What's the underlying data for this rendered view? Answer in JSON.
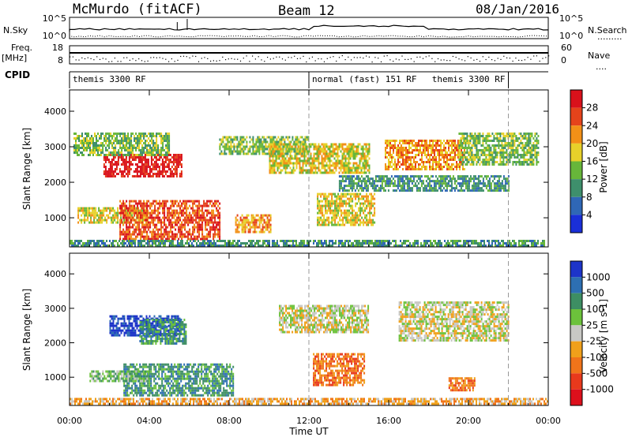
{
  "header": {
    "station": "McMurdo (fitACF)",
    "beam": "Beam 12",
    "date": "08/Jan/2016"
  },
  "summary_panels": {
    "nsky_label": "N.Sky",
    "nsky_ticks": [
      "10^5",
      "10^0"
    ],
    "nsearch_label": "N.Search",
    "nsearch_ticks": [
      "10^5",
      "10^0"
    ],
    "freq_label": "Freq.",
    "freq_unit": "[MHz]",
    "freq_ticks": [
      "18",
      "8"
    ],
    "nave_label": "Nave",
    "nave_ticks": [
      "60",
      "0"
    ],
    "cpid_label": "CPID",
    "cpid_segments": [
      {
        "label": "themis 3300 RF",
        "start_h": 0,
        "end_h": 12
      },
      {
        "label": "normal (fast) 151 RF",
        "start_h": 12,
        "end_h": 22
      },
      {
        "label": "themis 3300 RF",
        "start_h": 22,
        "end_h": 24
      }
    ]
  },
  "x_axis": {
    "label": "Time UT",
    "ticks": [
      "00:00",
      "04:00",
      "08:00",
      "12:00",
      "16:00",
      "20:00",
      "00:00"
    ]
  },
  "chart_data": [
    {
      "type": "heatmap",
      "name": "power",
      "ylabel": "Slant Range [km]",
      "x_range_hours": [
        0,
        24
      ],
      "ylim": [
        180,
        4600
      ],
      "y_ticks": [
        1000,
        2000,
        3000,
        4000
      ],
      "colorbar": {
        "label": "Power [dB]",
        "ticks": [
          "4",
          "8",
          "12",
          "16",
          "20",
          "24",
          "28"
        ],
        "colors": [
          "#1a2fd8",
          "#2f67b6",
          "#3e8f6c",
          "#67b63a",
          "#e7d12a",
          "#f29017",
          "#e5431b",
          "#d9111b"
        ]
      },
      "regions": [
        {
          "t0": 0.4,
          "t1": 3.9,
          "r0": 900,
          "r1": 1300,
          "level": 4
        },
        {
          "t0": 2.5,
          "t1": 7.5,
          "r0": 400,
          "r1": 1500,
          "level": 6
        },
        {
          "t0": 1.7,
          "t1": 5.6,
          "r0": 2200,
          "r1": 2800,
          "level": 7
        },
        {
          "t0": 0.2,
          "t1": 5.0,
          "r0": 2800,
          "r1": 3400,
          "level": 3
        },
        {
          "t0": 8.3,
          "t1": 10.1,
          "r0": 600,
          "r1": 1100,
          "level": 5
        },
        {
          "t0": 7.5,
          "t1": 12.0,
          "r0": 2800,
          "r1": 3300,
          "level": 3
        },
        {
          "t0": 10.0,
          "t1": 15.0,
          "r0": 2300,
          "r1": 3100,
          "level": 4
        },
        {
          "t0": 12.4,
          "t1": 15.3,
          "r0": 800,
          "r1": 1700,
          "level": 4
        },
        {
          "t0": 15.8,
          "t1": 19.8,
          "r0": 2400,
          "r1": 3200,
          "level": 5
        },
        {
          "t0": 19.5,
          "t1": 23.5,
          "r0": 2500,
          "r1": 3400,
          "level": 3
        },
        {
          "t0": 13.5,
          "t1": 22.0,
          "r0": 1800,
          "r1": 2200,
          "level": 2
        },
        {
          "t0": 0.0,
          "t1": 24.0,
          "r0": 200,
          "r1": 380,
          "level": 2
        }
      ]
    },
    {
      "type": "heatmap",
      "name": "velocity",
      "ylabel": "Slant Range [km]",
      "x_range_hours": [
        0,
        24
      ],
      "ylim": [
        180,
        4600
      ],
      "y_ticks": [
        1000,
        2000,
        3000,
        4000
      ],
      "colorbar": {
        "label": "Velocity [m s-1]",
        "ticks": [
          "1000",
          "500",
          "100",
          "25",
          "-25",
          "-100",
          "-500",
          "-1000"
        ],
        "colors": [
          "#1d34c9",
          "#2d6fb2",
          "#3d8e63",
          "#6cc23b",
          "#c8c8c4",
          "#f0a01a",
          "#f0741a",
          "#e8391c",
          "#dd101c"
        ]
      },
      "regions": [
        {
          "t0": 2.0,
          "t1": 5.5,
          "r0": 2200,
          "r1": 2800,
          "level": 0
        },
        {
          "t0": 3.5,
          "t1": 5.8,
          "r0": 2000,
          "r1": 2700,
          "level": 2
        },
        {
          "t0": 2.7,
          "t1": 8.2,
          "r0": 450,
          "r1": 1400,
          "level": 2
        },
        {
          "t0": 1.0,
          "t1": 4.0,
          "r0": 900,
          "r1": 1200,
          "level": 3
        },
        {
          "t0": 10.5,
          "t1": 15.0,
          "r0": 2300,
          "r1": 3100,
          "level": 4
        },
        {
          "t0": 16.5,
          "t1": 22.0,
          "r0": 2100,
          "r1": 3200,
          "level": 4
        },
        {
          "t0": 12.2,
          "t1": 14.8,
          "r0": 800,
          "r1": 1700,
          "level": 6
        },
        {
          "t0": 19.0,
          "t1": 20.3,
          "r0": 600,
          "r1": 1000,
          "level": 6
        },
        {
          "t0": 0.0,
          "t1": 24.0,
          "r0": 200,
          "r1": 400,
          "level": 5
        }
      ]
    }
  ]
}
